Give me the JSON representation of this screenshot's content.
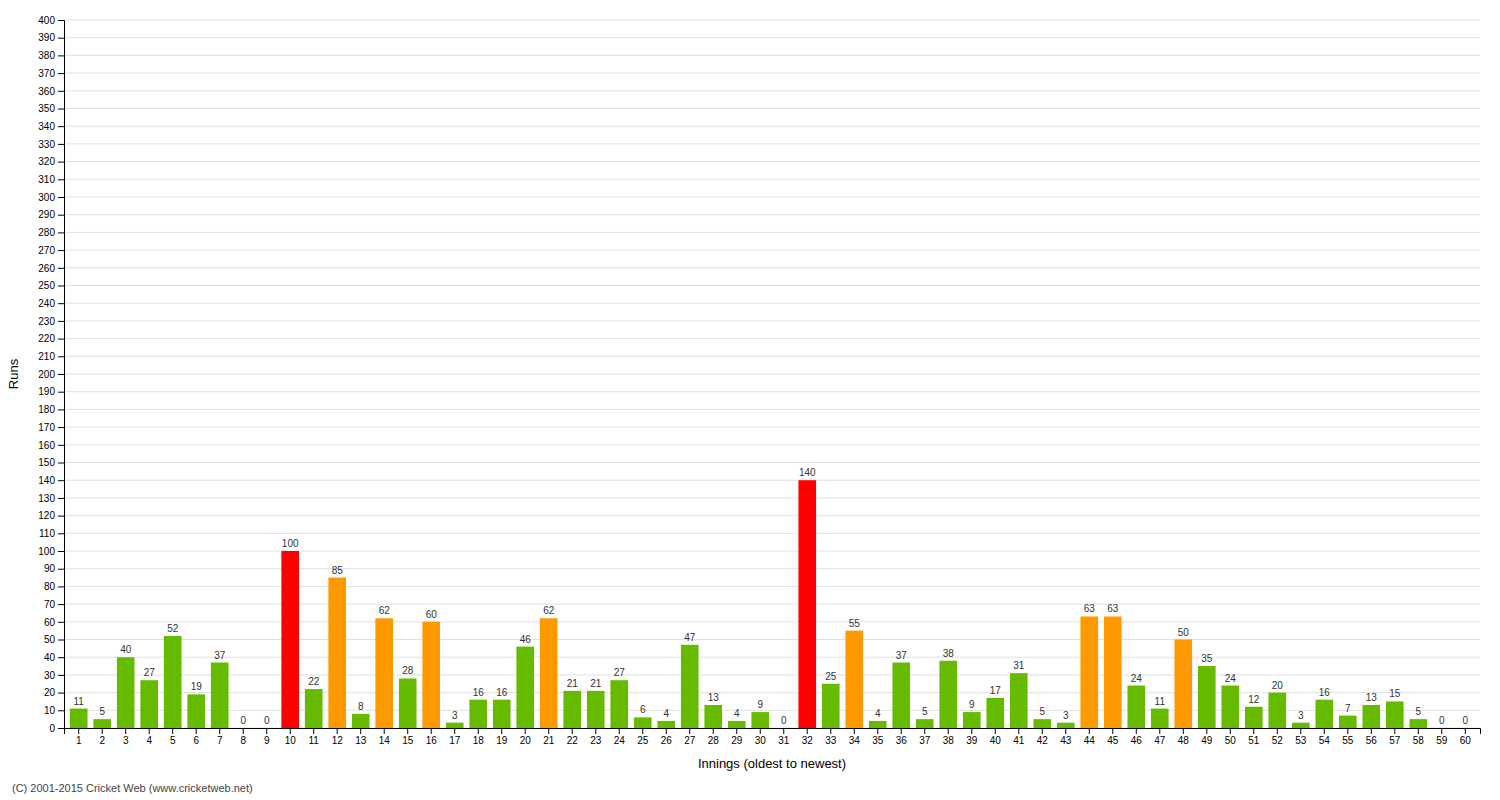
{
  "chart_data": {
    "type": "bar",
    "categories": [
      "1",
      "2",
      "3",
      "4",
      "5",
      "6",
      "7",
      "8",
      "9",
      "10",
      "11",
      "12",
      "13",
      "14",
      "15",
      "16",
      "17",
      "18",
      "19",
      "20",
      "21",
      "22",
      "23",
      "24",
      "25",
      "26",
      "27",
      "28",
      "29",
      "30",
      "31",
      "32",
      "33",
      "34",
      "35",
      "36",
      "37",
      "38",
      "39",
      "40",
      "41",
      "42",
      "43",
      "44",
      "45",
      "46",
      "47",
      "48",
      "49",
      "50",
      "51",
      "52",
      "53",
      "54",
      "55",
      "56",
      "57",
      "58",
      "59",
      "60"
    ],
    "values": [
      11,
      5,
      40,
      27,
      52,
      19,
      37,
      0,
      0,
      100,
      22,
      85,
      8,
      62,
      28,
      60,
      3,
      16,
      16,
      46,
      62,
      21,
      21,
      27,
      6,
      4,
      47,
      13,
      4,
      9,
      0,
      140,
      25,
      55,
      4,
      37,
      5,
      38,
      9,
      17,
      31,
      5,
      3,
      63,
      63,
      24,
      11,
      50,
      35,
      24,
      12,
      20,
      3,
      16,
      7,
      13,
      15,
      5,
      0,
      0
    ],
    "colors": [
      "#66bb00",
      "#66bb00",
      "#66bb00",
      "#66bb00",
      "#66bb00",
      "#66bb00",
      "#66bb00",
      "#66bb00",
      "#66bb00",
      "#ff0000",
      "#66bb00",
      "#ff9900",
      "#66bb00",
      "#ff9900",
      "#66bb00",
      "#ff9900",
      "#66bb00",
      "#66bb00",
      "#66bb00",
      "#66bb00",
      "#ff9900",
      "#66bb00",
      "#66bb00",
      "#66bb00",
      "#66bb00",
      "#66bb00",
      "#66bb00",
      "#66bb00",
      "#66bb00",
      "#66bb00",
      "#66bb00",
      "#ff0000",
      "#66bb00",
      "#ff9900",
      "#66bb00",
      "#66bb00",
      "#66bb00",
      "#66bb00",
      "#66bb00",
      "#66bb00",
      "#66bb00",
      "#66bb00",
      "#66bb00",
      "#ff9900",
      "#ff9900",
      "#66bb00",
      "#66bb00",
      "#ff9900",
      "#66bb00",
      "#66bb00",
      "#66bb00",
      "#66bb00",
      "#66bb00",
      "#66bb00",
      "#66bb00",
      "#66bb00",
      "#66bb00",
      "#66bb00",
      "#66bb00",
      "#66bb00"
    ],
    "ylabel": "Runs",
    "xlabel": "Innings (oldest to newest)",
    "ylim": [
      0,
      400
    ],
    "yticks": [
      0,
      10,
      20,
      30,
      40,
      50,
      60,
      70,
      80,
      90,
      100,
      110,
      120,
      130,
      140,
      150,
      160,
      170,
      180,
      190,
      200,
      210,
      220,
      230,
      240,
      250,
      260,
      270,
      280,
      290,
      300,
      310,
      320,
      330,
      340,
      350,
      360,
      370,
      380,
      390,
      400
    ],
    "grid": true,
    "data_labels": true,
    "annotations": [
      "(C) 2001-2015 Cricket Web (www.cricketweb.net)"
    ]
  }
}
